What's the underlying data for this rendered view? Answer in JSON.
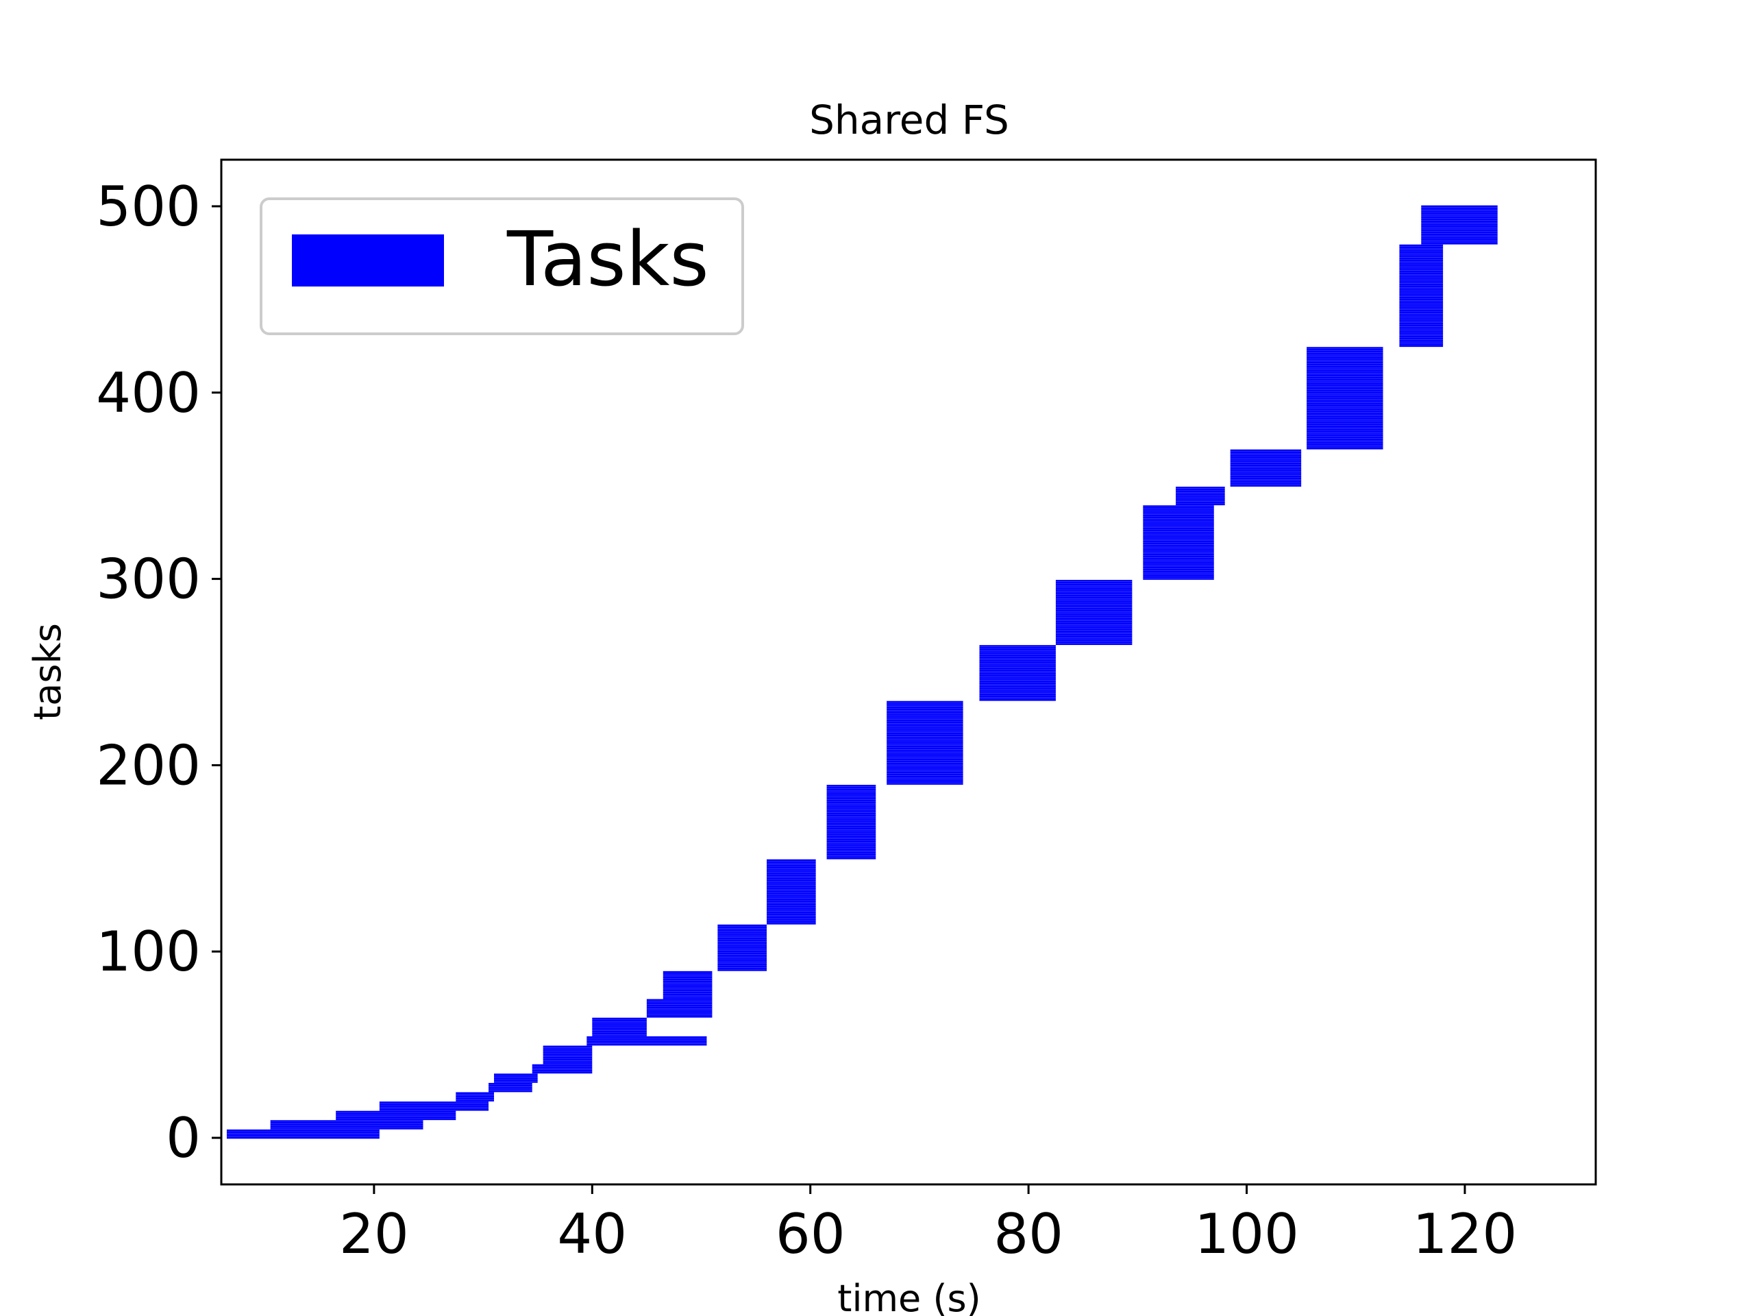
{
  "chart_data": {
    "type": "gantt",
    "title": "Shared FS",
    "xlabel": "time (s)",
    "ylabel": "tasks",
    "xlim": [
      6,
      132
    ],
    "ylim": [
      -25,
      525
    ],
    "xticks": [
      20,
      40,
      60,
      80,
      100,
      120
    ],
    "yticks": [
      0,
      100,
      200,
      300,
      400,
      500
    ],
    "grid": false,
    "legend": {
      "position": "upper-left",
      "entries": [
        {
          "label": "Tasks",
          "color": "#0000ff"
        }
      ]
    },
    "bar_color": "#0000ff",
    "series": [
      {
        "name": "Tasks",
        "start_end_by_task_range": [
          {
            "first": 0,
            "last": 4,
            "start": 6.5,
            "end": 20.5
          },
          {
            "first": 5,
            "last": 9,
            "start": 10.5,
            "end": 24.5
          },
          {
            "first": 10,
            "last": 14,
            "start": 16.5,
            "end": 27.5
          },
          {
            "first": 15,
            "last": 19,
            "start": 20.5,
            "end": 30.5
          },
          {
            "first": 20,
            "last": 24,
            "start": 27.5,
            "end": 31.0
          },
          {
            "first": 25,
            "last": 29,
            "start": 30.5,
            "end": 34.5
          },
          {
            "first": 30,
            "last": 34,
            "start": 31.0,
            "end": 35.0
          },
          {
            "first": 35,
            "last": 39,
            "start": 34.5,
            "end": 40.0
          },
          {
            "first": 40,
            "last": 49,
            "start": 35.5,
            "end": 40.0
          },
          {
            "first": 50,
            "last": 54,
            "start": 39.5,
            "end": 50.5
          },
          {
            "first": 55,
            "last": 64,
            "start": 40.0,
            "end": 45.0
          },
          {
            "first": 65,
            "last": 74,
            "start": 45.0,
            "end": 51.0
          },
          {
            "first": 75,
            "last": 89,
            "start": 46.5,
            "end": 51.0
          },
          {
            "first": 90,
            "last": 114,
            "start": 51.5,
            "end": 56.0
          },
          {
            "first": 115,
            "last": 149,
            "start": 56.0,
            "end": 60.5
          },
          {
            "first": 150,
            "last": 189,
            "start": 61.5,
            "end": 66.0
          },
          {
            "first": 190,
            "last": 234,
            "start": 67.0,
            "end": 74.0
          },
          {
            "first": 235,
            "last": 264,
            "start": 75.5,
            "end": 82.5
          },
          {
            "first": 265,
            "last": 299,
            "start": 82.5,
            "end": 89.5
          },
          {
            "first": 300,
            "last": 339,
            "start": 90.5,
            "end": 97.0
          },
          {
            "first": 340,
            "last": 349,
            "start": 93.5,
            "end": 98.0
          },
          {
            "first": 350,
            "last": 369,
            "start": 98.5,
            "end": 105.0
          },
          {
            "first": 370,
            "last": 424,
            "start": 105.5,
            "end": 112.5
          },
          {
            "first": 425,
            "last": 479,
            "start": 114.0,
            "end": 118.0
          },
          {
            "first": 480,
            "last": 500,
            "start": 116.0,
            "end": 123.0
          }
        ]
      }
    ]
  }
}
